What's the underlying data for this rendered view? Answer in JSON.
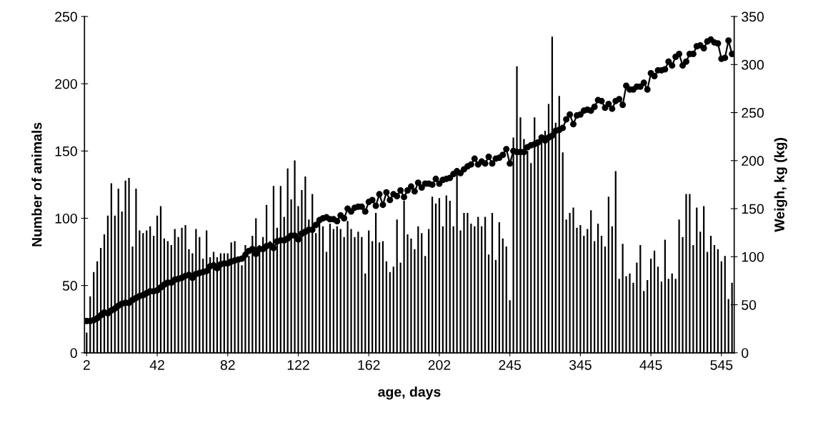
{
  "chart_data": {
    "type": "bar",
    "xlabel": "age, days",
    "ylabel": "Number of animals",
    "y2label": "Weigh, kg (kg)",
    "categories": [
      "2",
      null,
      null,
      null,
      null,
      null,
      null,
      null,
      null,
      null,
      null,
      null,
      null,
      null,
      null,
      null,
      null,
      null,
      null,
      null,
      "42",
      null,
      null,
      null,
      null,
      null,
      null,
      null,
      null,
      null,
      null,
      null,
      null,
      null,
      null,
      null,
      null,
      null,
      null,
      null,
      "82",
      null,
      null,
      null,
      null,
      null,
      null,
      null,
      null,
      null,
      null,
      null,
      null,
      null,
      null,
      null,
      null,
      null,
      null,
      null,
      "122",
      null,
      null,
      null,
      null,
      null,
      null,
      null,
      null,
      null,
      null,
      null,
      null,
      null,
      null,
      null,
      null,
      null,
      null,
      null,
      "162",
      null,
      null,
      null,
      null,
      null,
      null,
      null,
      null,
      null,
      null,
      null,
      null,
      null,
      null,
      null,
      null,
      null,
      null,
      null,
      "202",
      null,
      null,
      null,
      null,
      null,
      null,
      null,
      null,
      null,
      null,
      null,
      null,
      null,
      null,
      null,
      null,
      null,
      null,
      null,
      "245",
      null,
      null,
      null,
      null,
      null,
      null,
      null,
      null,
      null,
      null,
      null,
      null,
      null,
      null,
      null,
      null,
      null,
      null,
      null,
      "345",
      null,
      null,
      null,
      null,
      null,
      null,
      null,
      null,
      null,
      null,
      null,
      null,
      null,
      null,
      null,
      null,
      null,
      null,
      null,
      "445",
      null,
      null,
      null,
      null,
      null,
      null,
      null,
      null,
      null,
      null,
      null,
      null,
      null,
      null,
      null,
      null,
      null,
      null,
      null,
      "545",
      null,
      null,
      null
    ],
    "ylim": [
      0,
      250
    ],
    "yticks": [
      0,
      50,
      100,
      150,
      200,
      250
    ],
    "y2lim": [
      0,
      350
    ],
    "y2ticks": [
      0,
      50,
      100,
      150,
      200,
      250,
      300,
      350
    ],
    "grid": false,
    "series": [
      {
        "color": "#000000",
        "values": [
          15,
          42,
          60,
          68,
          78,
          88,
          102,
          126,
          102,
          122,
          105,
          128,
          130,
          79,
          122,
          91,
          89,
          91,
          94,
          87,
          102,
          109,
          85,
          83,
          80,
          92,
          86,
          93,
          95,
          77,
          74,
          92,
          86,
          70,
          91,
          71,
          75,
          71,
          74,
          74,
          74,
          82,
          83,
          67,
          65,
          80,
          72,
          87,
          100,
          80,
          86,
          110,
          83,
          124,
          93,
          124,
          101,
          137,
          114,
          143,
          109,
          121,
          131,
          99,
          118,
          89,
          101,
          94,
          75,
          96,
          92,
          94,
          92,
          86,
          98,
          92,
          86,
          90,
          86,
          59,
          91,
          83,
          104,
          82,
          83,
          68,
          60,
          64,
          99,
          67,
          113,
          88,
          85,
          77,
          94,
          89,
          72,
          92,
          116,
          111,
          115,
          94,
          117,
          113,
          94,
          133,
          91,
          104,
          104,
          96,
          94,
          101,
          94,
          101,
          73,
          104,
          69,
          97,
          85,
          79,
          39,
          160,
          213,
          175,
          159,
          150,
          141,
          175,
          155,
          160,
          165,
          185,
          235,
          171,
          191,
          149,
          99,
          104,
          108,
          93,
          95,
          87,
          92,
          106,
          83,
          96,
          87,
          79,
          116,
          94,
          135,
          55,
          81,
          57,
          59,
          52,
          67,
          80,
          46,
          54,
          70,
          76,
          64,
          53,
          84,
          55,
          59,
          55,
          99,
          86,
          118,
          118,
          80,
          108,
          90,
          109,
          75,
          87,
          80,
          77,
          68,
          72,
          40,
          52
        ]
      },
      {
        "type": "line",
        "axis": "y2",
        "color": "#000000",
        "marker": "circle",
        "line_style": "solid",
        "values": [
          33,
          33,
          34,
          36,
          39,
          42,
          41,
          44,
          46,
          49,
          51,
          52,
          52,
          55,
          57,
          59,
          60,
          62,
          64,
          64,
          65,
          68,
          71,
          73,
          73,
          76,
          77,
          78,
          80,
          81,
          78,
          82,
          83,
          84,
          85,
          90,
          91,
          88,
          92,
          93,
          93,
          95,
          96,
          97,
          98,
          102,
          106,
          108,
          103,
          108,
          108,
          111,
          112,
          109,
          116,
          117,
          117,
          119,
          122,
          122,
          118,
          124,
          126,
          128,
          128,
          133,
          138,
          140,
          141,
          139,
          139,
          137,
          143,
          140,
          150,
          147,
          151,
          152,
          152,
          147,
          157,
          159,
          153,
          165,
          154,
          167,
          159,
          165,
          163,
          169,
          162,
          169,
          173,
          168,
          177,
          172,
          176,
          176,
          175,
          181,
          176,
          180,
          181,
          182,
          186,
          189,
          187,
          191,
          194,
          196,
          202,
          196,
          199,
          197,
          204,
          197,
          202,
          203,
          206,
          212,
          197,
          210,
          209,
          209,
          209,
          214,
          216,
          217,
          219,
          224,
          221,
          224,
          226,
          231,
          232,
          234,
          243,
          248,
          238,
          247,
          248,
          252,
          253,
          252,
          256,
          263,
          262,
          255,
          259,
          254,
          262,
          264,
          258,
          278,
          274,
          274,
          277,
          277,
          281,
          274,
          291,
          288,
          294,
          294,
          295,
          303,
          299,
          308,
          311,
          299,
          303,
          311,
          311,
          319,
          320,
          317,
          324,
          326,
          323,
          322,
          306,
          307,
          325,
          311
        ]
      }
    ]
  }
}
